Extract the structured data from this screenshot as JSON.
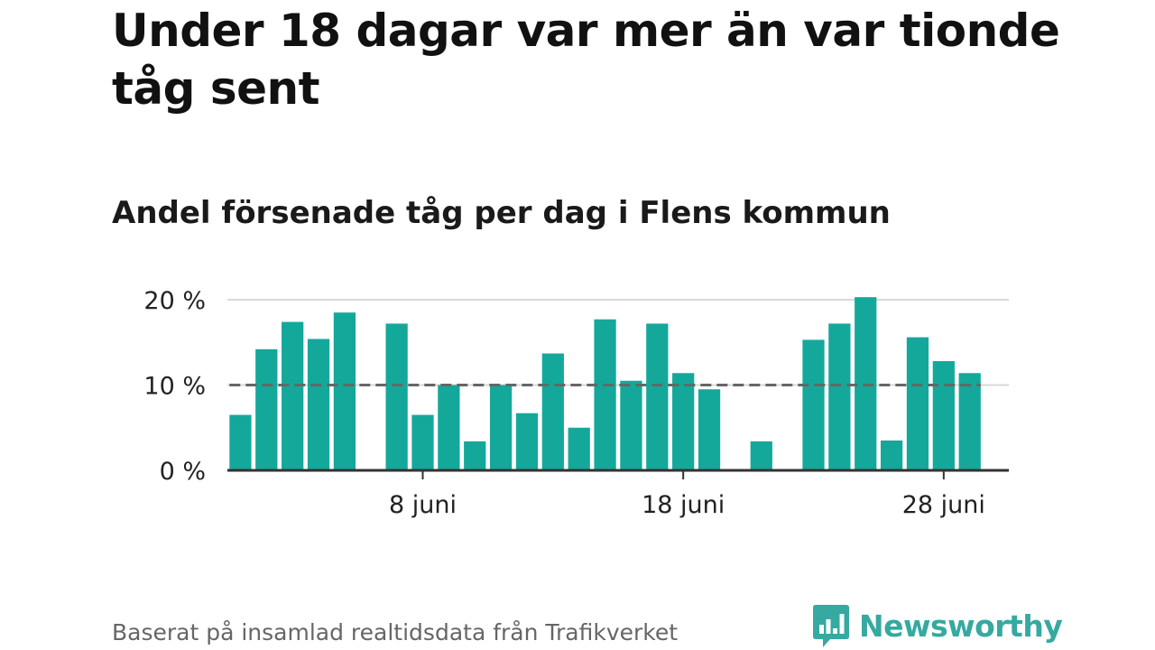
{
  "headline": "Under 18 dagar var mer än var tionde tåg sent",
  "subtitle": "Andel försenade tåg per dag i Flens kommun",
  "source": "Baserat på insamlad realtidsdata från Trafikverket",
  "brand": {
    "name": "Newsworthy",
    "icon": "newsworthy-logo-icon"
  },
  "colors": {
    "bar": "#14a89b",
    "grid": "#d9d9d9",
    "axis": "#333333",
    "reference": "#666666",
    "brand": "#36a9a0"
  },
  "chart_data": {
    "type": "bar",
    "title": "Andel försenade tåg per dag i Flens kommun",
    "xlabel": "",
    "ylabel": "",
    "y_ticks": [
      0,
      10,
      20
    ],
    "y_tick_labels": [
      "0 %",
      "10 %",
      "20 %"
    ],
    "ylim": [
      0,
      20
    ],
    "x_ticks": [
      {
        "day": 8,
        "label": "8 juni"
      },
      {
        "day": 18,
        "label": "18 juni"
      },
      {
        "day": 28,
        "label": "28 juni"
      }
    ],
    "xlim": [
      0.5,
      30.5
    ],
    "grid": true,
    "reference_line": {
      "value": 10,
      "style": "dashed"
    },
    "days": [
      1,
      2,
      3,
      4,
      5,
      6,
      7,
      8,
      9,
      10,
      11,
      12,
      13,
      14,
      15,
      16,
      17,
      18,
      19,
      20,
      21,
      22,
      23,
      24,
      25,
      26,
      27,
      28,
      29,
      30
    ],
    "values": [
      6.5,
      14.2,
      17.4,
      15.4,
      18.5,
      null,
      17.2,
      6.5,
      10.0,
      3.4,
      10.0,
      6.7,
      13.7,
      5.0,
      17.7,
      10.5,
      17.2,
      11.4,
      9.5,
      null,
      3.4,
      null,
      15.3,
      17.2,
      20.3,
      3.5,
      15.6,
      12.8,
      11.4,
      null
    ]
  }
}
